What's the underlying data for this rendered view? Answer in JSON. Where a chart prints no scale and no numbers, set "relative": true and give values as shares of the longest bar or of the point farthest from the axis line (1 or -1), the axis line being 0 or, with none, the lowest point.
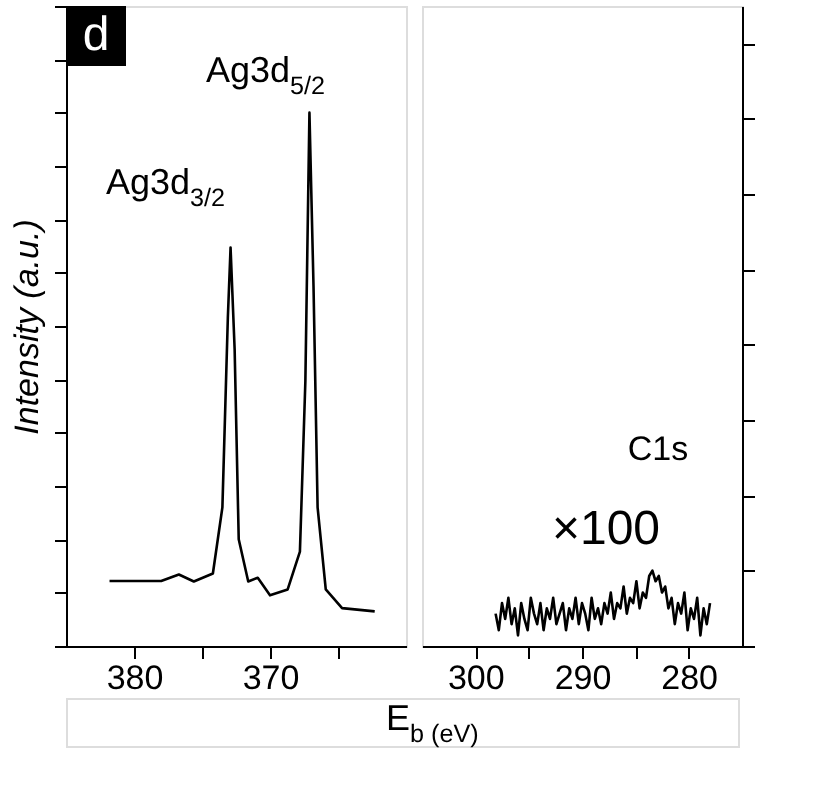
{
  "chart_data": [
    {
      "type": "line",
      "relative": true,
      "ylabel": "Intensity (a.u.)",
      "xlim": [
        385,
        360
      ],
      "xticks": [
        380,
        {
          "value": 375,
          "label": null
        },
        370,
        {
          "value": 365,
          "label": null
        }
      ],
      "annotations": [
        "d",
        "Ag3d$_{3/2}$",
        "Ag3d$_{5/2}$"
      ],
      "series": [
        {
          "color": "#000000",
          "x": [
            381.8,
            378,
            376.7,
            375.6,
            374.2,
            373.5,
            373.1,
            372.9,
            372.6,
            372.3,
            371.6,
            370.9,
            370,
            368.7,
            367.8,
            367.4,
            367.1,
            366.8,
            366.5,
            365.9,
            364.7,
            362.3
          ],
          "values": [
            0.122,
            0.122,
            0.134,
            0.121,
            0.136,
            0.26,
            0.615,
            0.747,
            0.556,
            0.2,
            0.121,
            0.128,
            0.095,
            0.106,
            0.177,
            0.496,
            1.0,
            0.674,
            0.26,
            0.106,
            0.071,
            0.065
          ]
        }
      ]
    },
    {
      "type": "line",
      "relative": true,
      "xlabel": "E$_{b}$ (eV)",
      "xlim": [
        305,
        275
      ],
      "xticks": [
        300,
        {
          "value": 295,
          "label": null
        },
        290,
        {
          "value": 285,
          "label": null
        },
        280
      ],
      "annotations": [
        "C1s",
        "×100"
      ],
      "series": [
        {
          "color": "#000000",
          "x": [
            298.1,
            297.8,
            297.5,
            297.2,
            296.9,
            296.6,
            296.3,
            296.0,
            295.7,
            295.4,
            295.1,
            294.8,
            294.5,
            294.2,
            293.9,
            293.6,
            293.3,
            293.0,
            292.7,
            292.4,
            292.1,
            291.8,
            291.5,
            291.2,
            290.9,
            290.6,
            290.3,
            290.0,
            289.7,
            289.4,
            289.1,
            288.8,
            288.5,
            288.2,
            287.9,
            287.6,
            287.3,
            287.0,
            286.7,
            286.4,
            286.1,
            285.8,
            285.5,
            285.2,
            284.9,
            284.6,
            284.3,
            284.0,
            283.7,
            283.4,
            283.1,
            282.8,
            282.5,
            282.2,
            281.9,
            281.6,
            281.3,
            281.0,
            280.7,
            280.4,
            280.1,
            279.8,
            279.5,
            279.2,
            278.9,
            278.6,
            278.3,
            278.0
          ],
          "values": [
            0.43,
            0.21,
            0.57,
            0.36,
            0.64,
            0.29,
            0.5,
            0.14,
            0.57,
            0.36,
            0.21,
            0.64,
            0.43,
            0.29,
            0.57,
            0.21,
            0.5,
            0.36,
            0.64,
            0.29,
            0.43,
            0.57,
            0.21,
            0.5,
            0.36,
            0.64,
            0.29,
            0.57,
            0.43,
            0.21,
            0.64,
            0.36,
            0.5,
            0.29,
            0.57,
            0.43,
            0.71,
            0.36,
            0.57,
            0.5,
            0.79,
            0.43,
            0.64,
            0.57,
            0.86,
            0.5,
            0.71,
            0.64,
            0.93,
            1.0,
            0.86,
            0.93,
            0.71,
            0.79,
            0.5,
            0.64,
            0.29,
            0.57,
            0.43,
            0.71,
            0.21,
            0.5,
            0.36,
            0.64,
            0.14,
            0.5,
            0.29,
            0.57
          ]
        }
      ]
    }
  ]
}
